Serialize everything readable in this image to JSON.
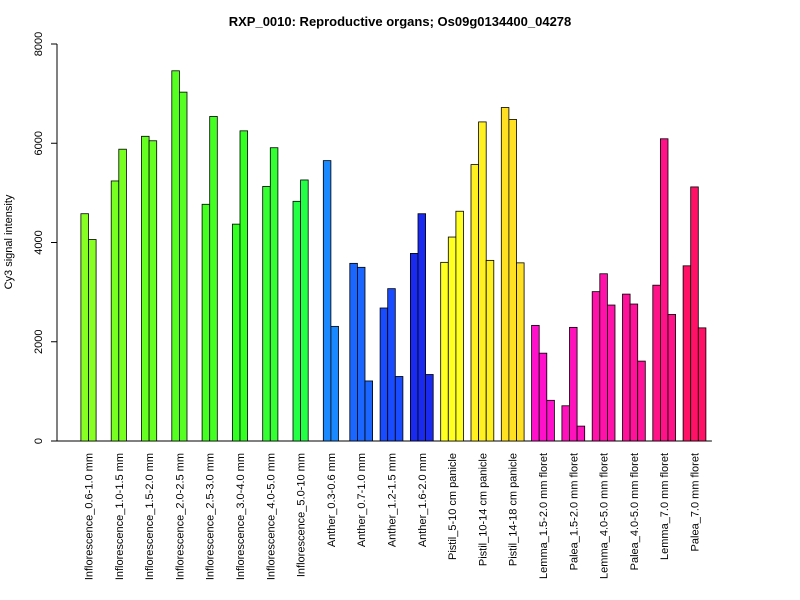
{
  "chart_data": {
    "type": "bar",
    "title": "RXP_0010: Reproductive organs; Os09g0134400_04278",
    "ylabel": "Cy3 signal intensity",
    "xlabel": "",
    "ylim": [
      0,
      8000
    ],
    "yticks": [
      0,
      2000,
      4000,
      6000,
      8000
    ],
    "grid": false,
    "legend": "none",
    "groups": [
      {
        "label": "Inflorescence_0.6-1.0 mm",
        "color": "#88ff22",
        "values": [
          4580,
          4060
        ]
      },
      {
        "label": "Inflorescence_1.0-1.5 mm",
        "color": "#77ff22",
        "values": [
          5240,
          5880
        ]
      },
      {
        "label": "Inflorescence_1.5-2.0 mm",
        "color": "#66ff22",
        "values": [
          6140,
          6050
        ]
      },
      {
        "label": "Inflorescence_2.0-2.5 mm",
        "color": "#55ff22",
        "values": [
          7460,
          7030
        ]
      },
      {
        "label": "Inflorescence_2.5-3.0 mm",
        "color": "#44ff22",
        "values": [
          4770,
          6540
        ]
      },
      {
        "label": "Inflorescence_3.0-4.0 mm",
        "color": "#33ff22",
        "values": [
          4370,
          6250
        ]
      },
      {
        "label": "Inflorescence_4.0-5.0 mm",
        "color": "#33ff33",
        "values": [
          5130,
          5910
        ]
      },
      {
        "label": "Inflorescence_5.0-10 mm",
        "color": "#22ff44",
        "values": [
          4830,
          5260
        ]
      },
      {
        "label": "Anther_0.3-0.6 mm",
        "color": "#1a88ff",
        "values": [
          5650,
          2310
        ]
      },
      {
        "label": "Anther_0.7-1.0 mm",
        "color": "#1a66ff",
        "values": [
          3580,
          3500,
          1210
        ]
      },
      {
        "label": "Anther_1.2-1.5 mm",
        "color": "#1a4cff",
        "values": [
          2680,
          3070,
          1300
        ]
      },
      {
        "label": "Anther_1.6-2.0 mm",
        "color": "#1a2aee",
        "values": [
          3780,
          4580,
          1340
        ]
      },
      {
        "label": "Pistil_5-10 cm panicle",
        "color": "#ffff22",
        "values": [
          3600,
          4110,
          4630
        ]
      },
      {
        "label": "Pistil_10-14 cm panicle",
        "color": "#fff022",
        "values": [
          5570,
          6430,
          3640
        ]
      },
      {
        "label": "Pistil_14-18 cm panicle",
        "color": "#ffe022",
        "values": [
          6720,
          6480,
          3590
        ]
      },
      {
        "label": "Lemma_1.5-2.0 mm floret",
        "color": "#ff11cc",
        "values": [
          2330,
          1770,
          820
        ]
      },
      {
        "label": "Palea_1.5-2.0 mm floret",
        "color": "#ff11bb",
        "values": [
          710,
          2290,
          300
        ]
      },
      {
        "label": "Lemma_4.0-5.0 mm floret",
        "color": "#ff11aa",
        "values": [
          3010,
          3370,
          2740
        ]
      },
      {
        "label": "Palea_4.0-5.0 mm floret",
        "color": "#ff1199",
        "values": [
          2960,
          2760,
          1610
        ]
      },
      {
        "label": "Lemma_7.0 mm floret",
        "color": "#ff1188",
        "values": [
          3140,
          6090,
          2550
        ]
      },
      {
        "label": "Palea_7.0 mm floret",
        "color": "#ff1166",
        "values": [
          3530,
          5120,
          2280
        ]
      }
    ]
  }
}
